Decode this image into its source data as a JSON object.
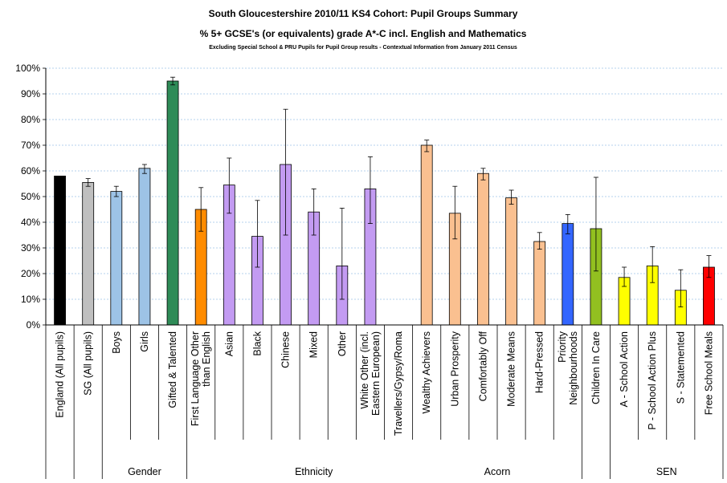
{
  "chart_data": {
    "type": "bar",
    "title": "South Gloucestershire 2010/11 KS4 Cohort: Pupil Groups Summary",
    "subtitle": "% 5+ GCSE's (or equivalents) grade A*-C incl. English and Mathematics",
    "note": "Excluding Special School & PRU Pupils for Pupil Group results - Contextual Information from January 2011 Census",
    "xlabel": "",
    "ylabel": "",
    "ylim": [
      0,
      100
    ],
    "y_ticks": [
      "0%",
      "10%",
      "20%",
      "30%",
      "40%",
      "50%",
      "60%",
      "70%",
      "80%",
      "90%",
      "100%"
    ],
    "grid": true,
    "legend": "none",
    "categories": [
      "England (All pupils)",
      "SG (All pupils)",
      "Boys",
      "Girls",
      "Gifted & Talented",
      "First Language Other than English",
      "Asian",
      "Black",
      "Chinese",
      "Mixed",
      "Other",
      "White Other (incl. Eastern European)",
      "Travellers/Gypsy/Roma",
      "Wealthy Achievers",
      "Urban Prosperity",
      "Comfortably Off",
      "Moderate Means",
      "Hard-Pressed",
      "Priority Neighbourhoods",
      "Children In Care",
      "A - School Action",
      "P - School Action Plus",
      "S - Statemented",
      "Free School Meals"
    ],
    "category_lines": [
      [
        "England (All pupils)"
      ],
      [
        "SG (All pupils)"
      ],
      [
        "Boys"
      ],
      [
        "Girls"
      ],
      [
        "Gifted & Talented"
      ],
      [
        "First Language Other",
        "than English"
      ],
      [
        "Asian"
      ],
      [
        "Black"
      ],
      [
        "Chinese"
      ],
      [
        "Mixed"
      ],
      [
        "Other"
      ],
      [
        "White Other (incl.",
        "Eastern European)"
      ],
      [
        "Travellers/Gypsy/Roma"
      ],
      [
        "Wealthy Achievers"
      ],
      [
        "Urban Prosperity"
      ],
      [
        "Comfortably Off"
      ],
      [
        "Moderate Means"
      ],
      [
        "Hard-Pressed"
      ],
      [
        "Priority",
        "Neighbourhoods"
      ],
      [
        "Children In Care"
      ],
      [
        "A - School Action"
      ],
      [
        "P - School Action Plus"
      ],
      [
        "S - Statemented"
      ],
      [
        "Free School Meals"
      ]
    ],
    "values": [
      58,
      55.5,
      52,
      61,
      95,
      45,
      54.5,
      34.5,
      62.5,
      44,
      23,
      53,
      0,
      70,
      43.5,
      59,
      49.5,
      32.5,
      39.5,
      37.5,
      18.5,
      23,
      13.5,
      22.5
    ],
    "error_low": [
      null,
      54,
      50,
      59,
      93.5,
      36.5,
      43.5,
      22.5,
      35,
      35,
      10,
      39.5,
      null,
      67.5,
      33.5,
      56.5,
      47,
      29.5,
      35.5,
      21,
      15,
      16.5,
      7,
      18.5
    ],
    "error_high": [
      null,
      57,
      54,
      62.5,
      96.5,
      53.5,
      65,
      48.5,
      84,
      53,
      45.5,
      65.5,
      null,
      72,
      54,
      61,
      52.5,
      36,
      43,
      57.5,
      22.5,
      30.5,
      21.5,
      27
    ],
    "colors": [
      "#000000",
      "#bfbfbf",
      "#9dc3e6",
      "#9dc3e6",
      "#2e8b57",
      "#ff8c00",
      "#c39bf2",
      "#c39bf2",
      "#c39bf2",
      "#c39bf2",
      "#c39bf2",
      "#c39bf2",
      "#c39bf2",
      "#fac090",
      "#fac090",
      "#fac090",
      "#fac090",
      "#fac090",
      "#3366ff",
      "#92c020",
      "#ffff00",
      "#ffff00",
      "#ffff00",
      "#ff0000"
    ],
    "groups": [
      {
        "label": "Gender",
        "start": 2,
        "end": 4
      },
      {
        "label": "Ethnicity",
        "start": 5,
        "end": 13
      },
      {
        "label": "Acorn",
        "start": 13,
        "end": 18
      },
      {
        "label": "SEN",
        "start": 20,
        "end": 23
      }
    ]
  }
}
